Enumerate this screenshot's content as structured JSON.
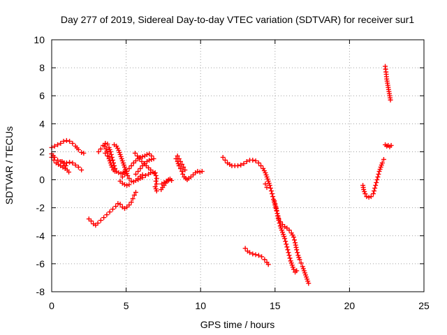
{
  "chart_data": {
    "type": "scatter",
    "title": "Day 277 of 2019, Sidereal Day-to-day VTEC variation (SDTVAR) for receiver sur1",
    "xlabel": "GPS time / hours",
    "ylabel": "SDTVAR / TECUs",
    "xlim": [
      0,
      25
    ],
    "ylim": [
      -8,
      10
    ],
    "xticks": [
      0,
      5,
      10,
      15,
      20,
      25
    ],
    "yticks": [
      -8,
      -6,
      -4,
      -2,
      0,
      2,
      4,
      6,
      8,
      10
    ],
    "grid": true,
    "marker": "plus",
    "color": "#ff0000",
    "segments": [
      [
        [
          0.0,
          2.3
        ],
        [
          0.2,
          2.4
        ],
        [
          0.4,
          2.5
        ],
        [
          0.6,
          2.6
        ],
        [
          0.8,
          2.75
        ],
        [
          1.0,
          2.8
        ],
        [
          1.2,
          2.75
        ],
        [
          1.4,
          2.6
        ],
        [
          1.6,
          2.4
        ],
        [
          1.8,
          2.15
        ],
        [
          2.0,
          1.95
        ],
        [
          2.15,
          1.9
        ]
      ],
      [
        [
          0.0,
          1.6
        ],
        [
          0.15,
          1.4
        ],
        [
          0.3,
          1.2
        ],
        [
          0.45,
          1.1
        ],
        [
          0.6,
          1.0
        ],
        [
          0.75,
          0.9
        ],
        [
          0.9,
          0.8
        ],
        [
          1.05,
          0.7
        ],
        [
          1.15,
          0.55
        ]
      ],
      [
        [
          0.0,
          1.85
        ],
        [
          0.2,
          1.6
        ],
        [
          0.4,
          1.4
        ],
        [
          0.6,
          1.3
        ],
        [
          0.8,
          1.2
        ],
        [
          1.0,
          1.2
        ],
        [
          1.2,
          1.25
        ],
        [
          1.4,
          1.2
        ],
        [
          1.6,
          1.05
        ],
        [
          1.8,
          0.9
        ],
        [
          2.0,
          0.7
        ]
      ],
      [
        [
          0.7,
          1.3
        ],
        [
          0.85,
          1.2
        ],
        [
          0.95,
          1.0
        ]
      ],
      [
        [
          2.5,
          -2.8
        ],
        [
          2.65,
          -2.95
        ],
        [
          2.8,
          -3.15
        ],
        [
          2.95,
          -3.25
        ],
        [
          3.1,
          -3.1
        ],
        [
          3.3,
          -2.9
        ],
        [
          3.5,
          -2.7
        ],
        [
          3.7,
          -2.5
        ],
        [
          3.9,
          -2.3
        ],
        [
          4.1,
          -2.1
        ],
        [
          4.3,
          -1.9
        ],
        [
          4.45,
          -1.7
        ],
        [
          4.6,
          -1.75
        ],
        [
          4.75,
          -1.95
        ],
        [
          4.9,
          -2.05
        ],
        [
          5.05,
          -1.95
        ],
        [
          5.2,
          -1.8
        ],
        [
          5.35,
          -1.6
        ],
        [
          5.45,
          -1.35
        ],
        [
          5.55,
          -1.1
        ],
        [
          5.65,
          -0.9
        ]
      ],
      [
        [
          3.15,
          2.0
        ],
        [
          3.3,
          2.2
        ],
        [
          3.45,
          2.45
        ],
        [
          3.6,
          2.6
        ],
        [
          3.75,
          2.55
        ],
        [
          3.85,
          2.3
        ],
        [
          3.95,
          2.0
        ],
        [
          4.05,
          1.6
        ],
        [
          4.15,
          1.2
        ],
        [
          4.25,
          0.8
        ],
        [
          4.35,
          0.6
        ],
        [
          4.5,
          0.5
        ],
        [
          4.65,
          0.45
        ],
        [
          4.8,
          0.5
        ],
        [
          4.9,
          0.55
        ]
      ],
      [
        [
          3.6,
          1.9
        ],
        [
          3.75,
          1.7
        ],
        [
          3.85,
          1.5
        ],
        [
          3.95,
          1.2
        ],
        [
          4.05,
          0.9
        ],
        [
          4.15,
          0.7
        ],
        [
          4.25,
          0.6
        ]
      ],
      [
        [
          3.55,
          2.4
        ],
        [
          3.65,
          2.2
        ],
        [
          3.75,
          1.9
        ],
        [
          3.85,
          1.65
        ]
      ],
      [
        [
          4.2,
          2.5
        ],
        [
          4.35,
          2.4
        ],
        [
          4.5,
          2.1
        ],
        [
          4.6,
          1.8
        ],
        [
          4.7,
          1.5
        ],
        [
          4.8,
          1.2
        ],
        [
          4.9,
          0.9
        ],
        [
          5.0,
          0.6
        ],
        [
          5.1,
          0.3
        ],
        [
          5.2,
          0.1
        ],
        [
          5.35,
          -0.1
        ],
        [
          5.5,
          -0.15
        ],
        [
          5.65,
          -0.05
        ],
        [
          5.8,
          0.1
        ],
        [
          5.95,
          0.25
        ],
        [
          6.1,
          0.35
        ]
      ],
      [
        [
          4.6,
          -0.1
        ],
        [
          4.75,
          -0.25
        ],
        [
          4.9,
          -0.35
        ],
        [
          5.05,
          -0.4
        ],
        [
          5.2,
          -0.35
        ]
      ],
      [
        [
          4.75,
          0.2
        ],
        [
          4.9,
          0.4
        ],
        [
          5.05,
          0.6
        ],
        [
          5.2,
          0.8
        ],
        [
          5.35,
          1.0
        ],
        [
          5.5,
          1.2
        ],
        [
          5.65,
          1.35
        ],
        [
          5.8,
          1.5
        ],
        [
          5.95,
          1.6
        ],
        [
          6.1,
          1.65
        ],
        [
          6.25,
          1.7
        ],
        [
          6.4,
          1.8
        ],
        [
          6.55,
          1.85
        ],
        [
          6.7,
          1.7
        ],
        [
          6.85,
          1.5
        ]
      ],
      [
        [
          5.6,
          1.9
        ],
        [
          5.75,
          1.7
        ],
        [
          5.9,
          1.5
        ],
        [
          6.05,
          1.3
        ],
        [
          6.2,
          1.15
        ],
        [
          6.35,
          1.0
        ],
        [
          6.5,
          0.85
        ],
        [
          6.65,
          0.7
        ],
        [
          6.8,
          0.55
        ],
        [
          6.9,
          0.45
        ]
      ],
      [
        [
          5.65,
          0.4
        ],
        [
          5.8,
          0.6
        ],
        [
          5.95,
          0.8
        ],
        [
          6.1,
          1.0
        ],
        [
          6.25,
          1.15
        ],
        [
          6.4,
          1.3
        ],
        [
          6.55,
          1.4
        ],
        [
          6.7,
          1.45
        ]
      ],
      [
        [
          5.8,
          0.0
        ],
        [
          5.95,
          0.1
        ],
        [
          6.1,
          0.15
        ],
        [
          6.3,
          0.3
        ],
        [
          6.5,
          0.4
        ],
        [
          6.65,
          0.5
        ]
      ],
      [
        [
          6.95,
          0.5
        ],
        [
          7.0,
          0.3
        ],
        [
          7.05,
          0.1
        ],
        [
          7.0,
          -0.1
        ],
        [
          7.05,
          -0.3
        ],
        [
          6.95,
          -0.5
        ],
        [
          7.05,
          -0.8
        ]
      ],
      [
        [
          7.35,
          -0.7
        ],
        [
          7.45,
          -0.55
        ],
        [
          7.55,
          -0.4
        ],
        [
          7.65,
          -0.25
        ],
        [
          7.75,
          -0.1
        ],
        [
          7.85,
          0.0
        ],
        [
          7.95,
          0.05
        ],
        [
          8.05,
          -0.05
        ]
      ],
      [
        [
          7.4,
          -0.3
        ],
        [
          7.55,
          -0.2
        ],
        [
          7.7,
          -0.1
        ],
        [
          7.85,
          -0.05
        ]
      ],
      [
        [
          8.35,
          1.5
        ],
        [
          8.45,
          1.3
        ],
        [
          8.55,
          1.0
        ],
        [
          8.65,
          0.8
        ],
        [
          8.75,
          0.6
        ],
        [
          8.8,
          0.4
        ],
        [
          8.9,
          0.2
        ],
        [
          9.0,
          0.1
        ],
        [
          9.1,
          0.0
        ],
        [
          9.2,
          0.1
        ],
        [
          9.35,
          0.2
        ],
        [
          9.5,
          0.35
        ],
        [
          9.65,
          0.5
        ],
        [
          9.8,
          0.6
        ],
        [
          9.95,
          0.55
        ],
        [
          10.1,
          0.6
        ]
      ],
      [
        [
          8.45,
          1.7
        ],
        [
          8.55,
          1.5
        ],
        [
          8.65,
          1.3
        ],
        [
          8.75,
          1.1
        ],
        [
          8.85,
          0.9
        ],
        [
          8.95,
          0.7
        ]
      ],
      [
        [
          11.5,
          1.6
        ],
        [
          11.65,
          1.4
        ],
        [
          11.8,
          1.2
        ],
        [
          11.95,
          1.1
        ],
        [
          12.1,
          1.0
        ],
        [
          12.3,
          1.0
        ],
        [
          12.5,
          1.0
        ],
        [
          12.7,
          1.05
        ],
        [
          12.9,
          1.15
        ],
        [
          13.1,
          1.3
        ],
        [
          13.3,
          1.4
        ],
        [
          13.5,
          1.4
        ],
        [
          13.7,
          1.35
        ],
        [
          13.9,
          1.2
        ],
        [
          14.05,
          1.0
        ],
        [
          14.2,
          0.8
        ],
        [
          14.35,
          0.5
        ],
        [
          14.45,
          0.2
        ],
        [
          14.55,
          -0.1
        ],
        [
          14.65,
          -0.4
        ],
        [
          14.75,
          -0.8
        ],
        [
          14.85,
          -1.2
        ],
        [
          14.95,
          -1.6
        ],
        [
          15.05,
          -2.0
        ],
        [
          15.15,
          -2.4
        ],
        [
          15.25,
          -2.8
        ],
        [
          15.35,
          -3.0
        ],
        [
          15.5,
          -3.2
        ],
        [
          15.65,
          -3.35
        ],
        [
          15.8,
          -3.45
        ],
        [
          15.95,
          -3.6
        ],
        [
          16.1,
          -3.8
        ],
        [
          16.25,
          -4.1
        ],
        [
          16.35,
          -4.5
        ],
        [
          16.45,
          -5.0
        ],
        [
          16.55,
          -5.4
        ],
        [
          16.65,
          -5.7
        ],
        [
          16.75,
          -5.95
        ],
        [
          16.85,
          -6.2
        ],
        [
          16.95,
          -6.5
        ],
        [
          17.05,
          -6.8
        ],
        [
          17.15,
          -7.1
        ],
        [
          17.25,
          -7.4
        ]
      ],
      [
        [
          14.35,
          -0.3
        ],
        [
          14.45,
          -0.55
        ]
      ],
      [
        [
          14.95,
          -1.5
        ],
        [
          15.05,
          -1.9
        ],
        [
          15.15,
          -2.4
        ],
        [
          15.25,
          -2.9
        ],
        [
          15.35,
          -3.3
        ],
        [
          15.45,
          -3.6
        ],
        [
          15.55,
          -3.9
        ],
        [
          15.65,
          -4.2
        ],
        [
          15.75,
          -4.6
        ],
        [
          15.85,
          -5.0
        ],
        [
          15.95,
          -5.4
        ],
        [
          16.05,
          -5.8
        ],
        [
          16.15,
          -6.1
        ],
        [
          16.25,
          -6.4
        ],
        [
          16.35,
          -6.6
        ],
        [
          16.45,
          -6.5
        ]
      ],
      [
        [
          13.0,
          -4.9
        ],
        [
          13.15,
          -5.1
        ],
        [
          13.3,
          -5.2
        ],
        [
          13.5,
          -5.3
        ],
        [
          13.7,
          -5.35
        ],
        [
          13.9,
          -5.4
        ],
        [
          14.1,
          -5.5
        ],
        [
          14.3,
          -5.7
        ],
        [
          14.45,
          -5.9
        ],
        [
          14.55,
          -6.05
        ]
      ],
      [
        [
          20.9,
          -0.4
        ],
        [
          20.95,
          -0.7
        ],
        [
          21.05,
          -1.0
        ],
        [
          21.15,
          -1.2
        ],
        [
          21.3,
          -1.25
        ],
        [
          21.45,
          -1.2
        ],
        [
          21.6,
          -1.0
        ],
        [
          21.7,
          -0.6
        ],
        [
          21.8,
          -0.2
        ],
        [
          21.9,
          0.2
        ],
        [
          22.0,
          0.6
        ],
        [
          22.1,
          0.9
        ],
        [
          22.2,
          1.2
        ],
        [
          22.3,
          1.45
        ]
      ],
      [
        [
          22.4,
          8.1
        ],
        [
          22.45,
          7.7
        ],
        [
          22.5,
          7.2
        ],
        [
          22.55,
          6.9
        ],
        [
          22.6,
          6.6
        ],
        [
          22.65,
          6.3
        ],
        [
          22.7,
          6.0
        ],
        [
          22.75,
          5.7
        ]
      ],
      [
        [
          22.4,
          2.5
        ],
        [
          22.5,
          2.4
        ],
        [
          22.6,
          2.45
        ],
        [
          22.7,
          2.35
        ],
        [
          22.8,
          2.45
        ]
      ]
    ]
  }
}
